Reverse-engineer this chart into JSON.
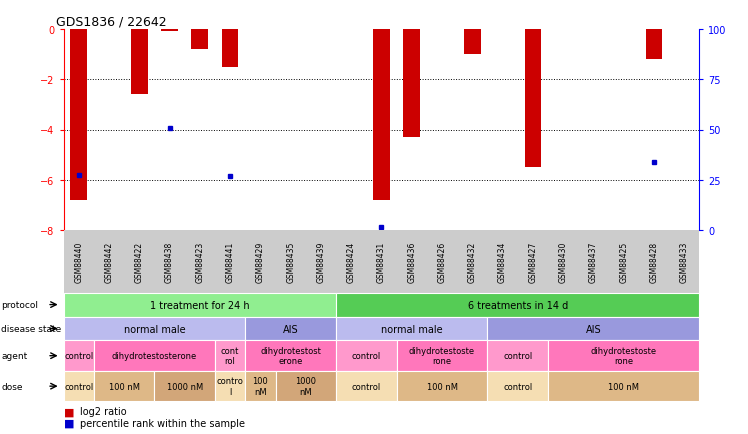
{
  "title": "GDS1836 / 22642",
  "samples": [
    "GSM88440",
    "GSM88442",
    "GSM88422",
    "GSM88438",
    "GSM88423",
    "GSM88441",
    "GSM88429",
    "GSM88435",
    "GSM88439",
    "GSM88424",
    "GSM88431",
    "GSM88436",
    "GSM88426",
    "GSM88432",
    "GSM88434",
    "GSM88427",
    "GSM88430",
    "GSM88437",
    "GSM88425",
    "GSM88428",
    "GSM88433"
  ],
  "log2_ratio": [
    -6.8,
    0,
    -2.6,
    -0.05,
    -0.8,
    -1.5,
    0,
    0,
    0,
    0,
    -6.8,
    -4.3,
    0,
    -1.0,
    0,
    -5.5,
    0,
    0,
    0,
    -1.2,
    0
  ],
  "has_bar": [
    true,
    false,
    true,
    true,
    true,
    true,
    false,
    false,
    false,
    false,
    true,
    true,
    false,
    true,
    false,
    true,
    false,
    false,
    false,
    true,
    false
  ],
  "has_blue": [
    true,
    false,
    false,
    true,
    false,
    true,
    false,
    false,
    false,
    false,
    true,
    false,
    false,
    false,
    false,
    false,
    false,
    false,
    false,
    true,
    false
  ],
  "blue_y": [
    -5.8,
    0,
    0,
    -3.95,
    0,
    -5.85,
    0,
    0,
    0,
    0,
    -7.9,
    0,
    0,
    0,
    0,
    0,
    0,
    0,
    0,
    -5.3,
    0
  ],
  "ylim_left": [
    -8,
    0
  ],
  "yticks_left": [
    0,
    -2,
    -4,
    -6,
    -8
  ],
  "yticks_right": [
    100,
    75,
    50,
    25,
    0
  ],
  "protocol_spans": [
    {
      "label": "1 treatment for 24 h",
      "start": 0,
      "end": 9,
      "color": "#90EE90"
    },
    {
      "label": "6 treatments in 14 d",
      "start": 9,
      "end": 21,
      "color": "#55CC55"
    }
  ],
  "disease_spans": [
    {
      "label": "normal male",
      "start": 0,
      "end": 6,
      "color": "#BBBBEE"
    },
    {
      "label": "AIS",
      "start": 6,
      "end": 9,
      "color": "#9999DD"
    },
    {
      "label": "normal male",
      "start": 9,
      "end": 14,
      "color": "#BBBBEE"
    },
    {
      "label": "AIS",
      "start": 14,
      "end": 21,
      "color": "#9999DD"
    }
  ],
  "agent_spans": [
    {
      "label": "control",
      "start": 0,
      "end": 1,
      "color": "#FF99CC"
    },
    {
      "label": "dihydrotestosterone",
      "start": 1,
      "end": 5,
      "color": "#FF77BB"
    },
    {
      "label": "cont\nrol",
      "start": 5,
      "end": 6,
      "color": "#FF99CC"
    },
    {
      "label": "dihydrotestost\nerone",
      "start": 6,
      "end": 9,
      "color": "#FF77BB"
    },
    {
      "label": "control",
      "start": 9,
      "end": 11,
      "color": "#FF99CC"
    },
    {
      "label": "dihydrotestoste\nrone",
      "start": 11,
      "end": 14,
      "color": "#FF77BB"
    },
    {
      "label": "control",
      "start": 14,
      "end": 16,
      "color": "#FF99CC"
    },
    {
      "label": "dihydrotestoste\nrone",
      "start": 16,
      "end": 21,
      "color": "#FF77BB"
    }
  ],
  "dose_spans": [
    {
      "label": "control",
      "start": 0,
      "end": 1,
      "color": "#F5DEB3"
    },
    {
      "label": "100 nM",
      "start": 1,
      "end": 3,
      "color": "#DEB887"
    },
    {
      "label": "1000 nM",
      "start": 3,
      "end": 5,
      "color": "#D2A679"
    },
    {
      "label": "contro\nl",
      "start": 5,
      "end": 6,
      "color": "#F5DEB3"
    },
    {
      "label": "100\nnM",
      "start": 6,
      "end": 7,
      "color": "#DEB887"
    },
    {
      "label": "1000\nnM",
      "start": 7,
      "end": 9,
      "color": "#D2A679"
    },
    {
      "label": "control",
      "start": 9,
      "end": 11,
      "color": "#F5DEB3"
    },
    {
      "label": "100 nM",
      "start": 11,
      "end": 14,
      "color": "#DEB887"
    },
    {
      "label": "control",
      "start": 14,
      "end": 16,
      "color": "#F5DEB3"
    },
    {
      "label": "100 nM",
      "start": 16,
      "end": 21,
      "color": "#DEB887"
    }
  ],
  "bar_color": "#CC0000",
  "blue_color": "#0000CC",
  "sample_label_row_color": "#CCCCCC",
  "legend_items": [
    {
      "label": "log2 ratio",
      "color": "#CC0000"
    },
    {
      "label": "percentile rank within the sample",
      "color": "#0000CC"
    }
  ]
}
